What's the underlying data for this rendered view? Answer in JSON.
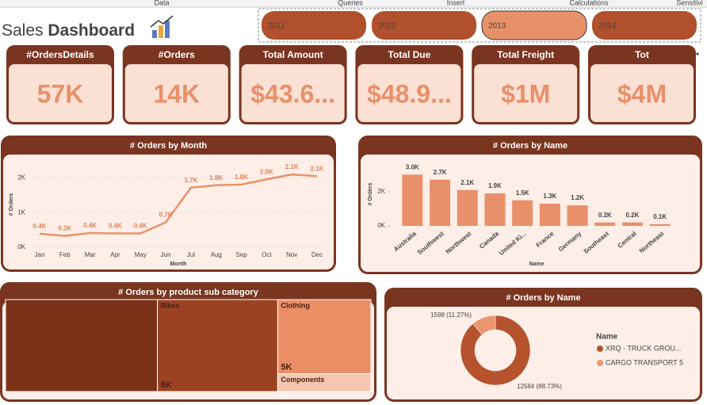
{
  "ribbon": [
    "Data",
    "Queries",
    "Insert",
    "Calculations",
    "Sensitivi"
  ],
  "header": {
    "title_light": "Sales",
    "title_bold": "Dashboard"
  },
  "slicer": {
    "options": [
      "2011",
      "2012",
      "2013",
      "2014"
    ],
    "selected_index": 2
  },
  "cards": [
    {
      "label": "#OrdersDetails",
      "value": "57K"
    },
    {
      "label": "#Orders",
      "value": "14K"
    },
    {
      "label": "Total Amount",
      "value": "$43.6..."
    },
    {
      "label": "Total Due",
      "value": "$48.9..."
    },
    {
      "label": "Total Freight",
      "value": "$1M"
    },
    {
      "label": "Tot",
      "value": "$4M"
    }
  ],
  "chart_data": [
    {
      "type": "line",
      "title": "# Orders by Month",
      "x_label": "Month",
      "y_label": "# Orders",
      "categories": [
        "Jan",
        "Feb",
        "Mar",
        "Apr",
        "May",
        "Jun",
        "Jul",
        "Aug",
        "Sep",
        "Oct",
        "Nov",
        "Dec"
      ],
      "values": [
        390,
        330,
        410,
        400,
        400,
        720,
        1720,
        1790,
        1810,
        1960,
        2100,
        2050
      ],
      "value_labels": [
        "0.4K",
        "0.3K",
        "0.4K",
        "0.4K",
        "0.4K",
        "0.7K",
        "1.7K",
        "1.8K",
        "1.8K",
        "2.0K",
        "2.1K",
        "2.1K"
      ],
      "color": "#e8906a",
      "ylim": [
        0,
        2400
      ],
      "yticks": [
        {
          "value": 0,
          "label": "0K"
        },
        {
          "value": 1000,
          "label": "1K"
        },
        {
          "value": 2000,
          "label": "2K"
        }
      ],
      "grid": true
    },
    {
      "type": "bar",
      "title": "# Orders by Name",
      "x_label": "Name",
      "y_label": "# Orders",
      "categories": [
        "Australia",
        "Southwest",
        "Northwest",
        "Canada",
        "United Ki...",
        "France",
        "Germany",
        "Southeast",
        "Central",
        "Northeast"
      ],
      "values": [
        3000,
        2700,
        2100,
        1900,
        1500,
        1300,
        1200,
        200,
        200,
        100
      ],
      "value_labels": [
        "3.0K",
        "2.7K",
        "2.1K",
        "1.9K",
        "1.5K",
        "1.3K",
        "1.2K",
        "0.2K",
        "0.2K",
        "0.1K"
      ],
      "color": "#e8906a",
      "ylim": [
        0,
        3200
      ],
      "yticks": [
        {
          "value": 0,
          "label": "0K"
        },
        {
          "value": 2000,
          "label": "2K"
        }
      ],
      "grid": false
    },
    {
      "type": "treemap",
      "title": "# Orders by product sub category",
      "categories": [
        null,
        "Bikes",
        "Clothing",
        "Components"
      ],
      "values": [
        10100,
        8000,
        5000,
        1200
      ],
      "value_labels": [
        null,
        "8K",
        "5K",
        null
      ],
      "colors": [
        "#7b3218",
        "#9a4222",
        "#eb8e65",
        "#f5c6b0"
      ]
    },
    {
      "type": "donut",
      "title": "# Orders by Name",
      "legend_title": "Name",
      "categories": [
        "XRQ - TRUCK GROU...",
        "CARGO TRANSPORT 5"
      ],
      "values": [
        12584,
        1598
      ],
      "value_labels": [
        "12584 (88.73%)",
        "1598 (11.27%)"
      ],
      "colors": [
        "#b5532e",
        "#ec9670"
      ]
    }
  ]
}
